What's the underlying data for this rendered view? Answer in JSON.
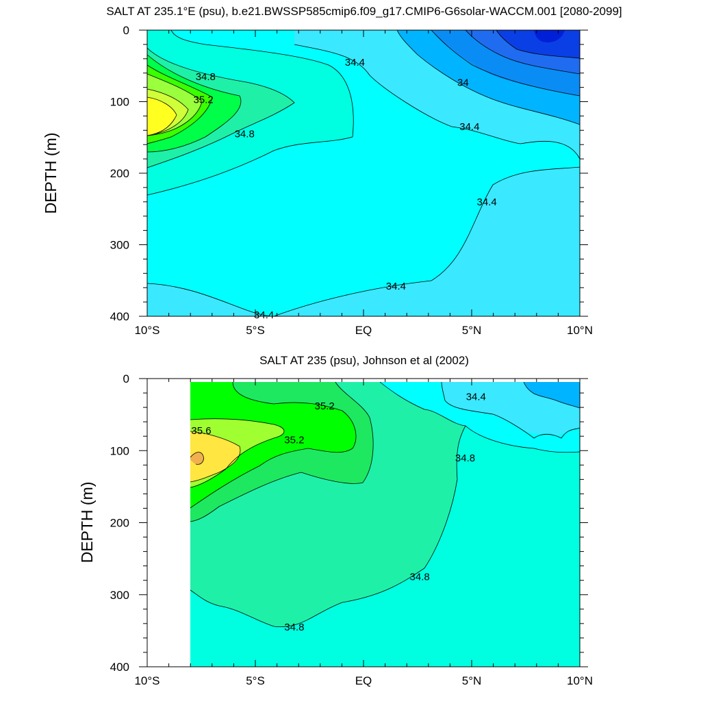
{
  "chart_data": [
    {
      "type": "contour",
      "title": "SALT AT 235.1°E (psu), b.e21.BWSSP585cmip6.f09_g17.CMIP6-G6solar-WACCM.001 [2080-2099]",
      "ylabel": "DEPTH (m)",
      "xlabel": "",
      "x_ticks": [
        "10°S",
        "5°S",
        "EQ",
        "5°N",
        "10°N"
      ],
      "x_tick_values": [
        -10,
        -5,
        0,
        5,
        10
      ],
      "y_ticks": [
        "0",
        "100",
        "200",
        "300",
        "400"
      ],
      "y_tick_values": [
        0,
        100,
        200,
        300,
        400
      ],
      "xlim": [
        -10,
        10
      ],
      "ylim": [
        400,
        0
      ],
      "grid": false,
      "colors": {
        "below_33_8": "#0a3fe6",
        "33_8_to_34_0": "#0a8cf5",
        "34_0_to_34_2": "#00b4ff",
        "34_2_to_34_4": "#3ae8ff",
        "34_4_to_34_6": "#00ffff",
        "34_6_to_34_8": "#00ffe0",
        "34_8_to_35_0": "#1ef0a8",
        "35_0_to_35_2": "#00ff48",
        "35_2_to_35_4": "#3aff00",
        "35_4_to_35_6": "#9aff3c",
        "35_6_to_35_8": "#d0ff3a",
        "above_35_8": "#ffff20"
      },
      "contour_labels": [
        {
          "text": "34.8",
          "lat": -7.3,
          "depth": 65
        },
        {
          "text": "35.2",
          "lat": -7.4,
          "depth": 97
        },
        {
          "text": "34.8",
          "lat": -5.5,
          "depth": 145
        },
        {
          "text": "34.4",
          "lat": -0.4,
          "depth": 45
        },
        {
          "text": "34",
          "lat": 4.6,
          "depth": 73
        },
        {
          "text": "34.4",
          "lat": 4.9,
          "depth": 135
        },
        {
          "text": "34.4",
          "lat": 5.7,
          "depth": 240
        },
        {
          "text": "34.4",
          "lat": 1.5,
          "depth": 358
        },
        {
          "text": "34.4",
          "lat": -4.6,
          "depth": 398
        }
      ]
    },
    {
      "type": "contour",
      "title": "SALT AT 235 (psu), Johnson et al (2002)",
      "ylabel": "DEPTH (m)",
      "xlabel": "",
      "x_ticks": [
        "10°S",
        "5°S",
        "EQ",
        "5°N",
        "10°N"
      ],
      "x_tick_values": [
        -10,
        -5,
        0,
        5,
        10
      ],
      "y_ticks": [
        "0",
        "100",
        "200",
        "300",
        "400"
      ],
      "y_tick_values": [
        0,
        100,
        200,
        300,
        400
      ],
      "xlim": [
        -10,
        10
      ],
      "ylim": [
        400,
        0
      ],
      "data_lat_range": [
        -8,
        10
      ],
      "grid": false,
      "colors": {
        "34_0_to_34_2": "#00b4ff",
        "34_2_to_34_4": "#3ae8ff",
        "34_4_to_34_6": "#00ffff",
        "34_6_to_34_8": "#00ffe0",
        "34_8_to_35_0": "#1ef0a8",
        "35_0_to_35_2": "#1de860",
        "35_2_to_35_4": "#00ff00",
        "35_4_to_35_6": "#a0ff30",
        "35_6_to_35_8": "#ffe640",
        "above_35_8": "#f0b050"
      },
      "contour_labels": [
        {
          "text": "35.2",
          "lat": -1.8,
          "depth": 38
        },
        {
          "text": "35.6",
          "lat": -7.5,
          "depth": 72
        },
        {
          "text": "35.2",
          "lat": -3.2,
          "depth": 85
        },
        {
          "text": "34.4",
          "lat": 5.2,
          "depth": 25
        },
        {
          "text": "34.8",
          "lat": 4.7,
          "depth": 110
        },
        {
          "text": "34.8",
          "lat": 2.6,
          "depth": 275
        },
        {
          "text": "34.8",
          "lat": -3.2,
          "depth": 345
        }
      ]
    }
  ]
}
